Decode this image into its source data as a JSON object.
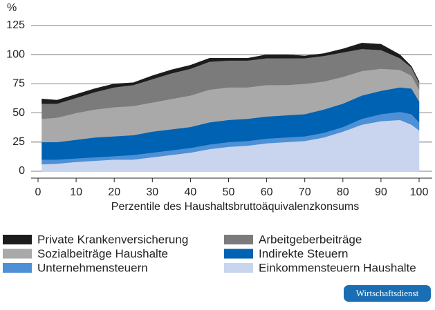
{
  "chart_data": {
    "type": "stacked_area",
    "y_unit": "%",
    "x_label": "Perzentile des Haushaltsbruttoäquivalenzkonsums",
    "x": [
      1,
      5,
      10,
      15,
      20,
      25,
      30,
      35,
      40,
      45,
      50,
      55,
      60,
      65,
      70,
      75,
      80,
      85,
      90,
      95,
      98,
      100
    ],
    "series": [
      {
        "name": "Einkommensteuern Haushalte",
        "color": "#c9d5ee",
        "values": [
          6,
          6.5,
          8,
          9,
          10,
          10,
          12,
          14,
          16,
          19,
          21,
          22,
          24,
          25,
          26,
          29,
          34,
          40,
          43,
          44,
          40,
          35
        ]
      },
      {
        "name": "Unternehmensteuern",
        "color": "#4d90d6",
        "values": [
          4,
          3.5,
          3,
          3,
          3,
          4,
          4,
          4,
          4,
          4,
          4,
          4,
          4,
          4,
          4,
          4,
          4,
          5,
          6,
          7,
          9,
          7
        ]
      },
      {
        "name": "Indirekte Steuern",
        "color": "#0062b2",
        "values": [
          15,
          15,
          16,
          17,
          17,
          17,
          18,
          18,
          18,
          19,
          19,
          19,
          19,
          19,
          19,
          20,
          20,
          20,
          20,
          21,
          22,
          18
        ]
      },
      {
        "name": "Sozialbeiträge Haushalte",
        "color": "#a9a9a9",
        "values": [
          20,
          21,
          23,
          24,
          25,
          25,
          25,
          26,
          27,
          28,
          28,
          27,
          27,
          26,
          26,
          24,
          23,
          21,
          19,
          15,
          11,
          10
        ]
      },
      {
        "name": "Arbeitgeberbeiträge",
        "color": "#7b7b7b",
        "values": [
          13,
          12,
          13,
          15,
          17,
          18,
          20,
          22,
          23,
          24,
          23,
          23,
          23,
          23,
          22,
          22,
          21,
          19,
          16,
          10,
          7,
          6
        ]
      },
      {
        "name": "Private Krankenversicherung",
        "color": "#1c1c1c",
        "values": [
          4,
          3,
          3,
          3,
          3,
          2,
          3,
          3,
          3,
          3,
          2,
          2,
          3,
          3,
          2,
          2,
          3,
          5,
          5,
          3,
          1,
          1
        ]
      }
    ],
    "xlim": [
      0,
      100
    ],
    "xticks": [
      0,
      10,
      20,
      30,
      40,
      50,
      60,
      70,
      80,
      90,
      100
    ],
    "ylim": [
      0,
      125
    ],
    "yticks": [
      0,
      25,
      50,
      75,
      100,
      125
    ],
    "grid": true,
    "badge": "Wirtschaftsdienst"
  }
}
